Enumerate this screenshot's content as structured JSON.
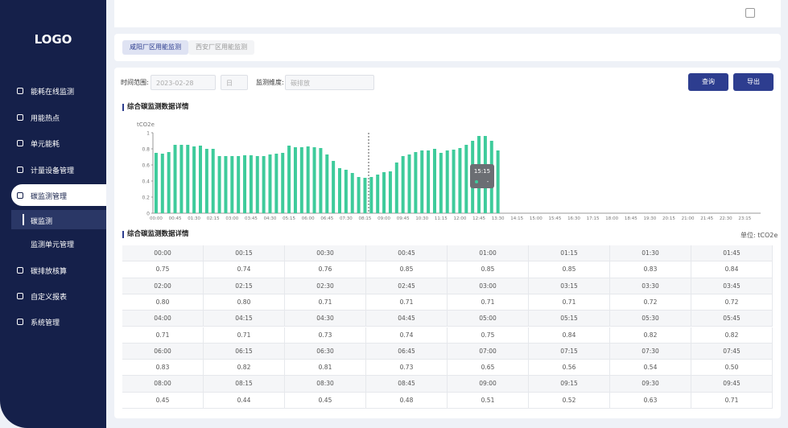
{
  "sidebar": {
    "logo": "LOGO",
    "menu": [
      "能耗在线监测",
      "用能热点",
      "单元能耗",
      "计量设备管理",
      "碳监测管理"
    ],
    "submenu": [
      "碳监测",
      "监测单元管理"
    ],
    "menu_after": [
      "碳排放核算",
      "自定义报表",
      "系统管理"
    ]
  },
  "tabs": [
    "咸阳厂区用能监测",
    "西安厂区用能监测"
  ],
  "filters": {
    "time_label": "时间范围:",
    "date": "2023-02-28",
    "period": "日",
    "dimension_label": "监测维度:",
    "dimension": "碳排放"
  },
  "buttons": [
    "查询",
    "导出"
  ],
  "chart_data": {
    "type": "bar",
    "title": "综合碳监测数据详情",
    "y_label": "tCO2e",
    "color": "#3ecb9b",
    "ylim": [
      0,
      1
    ],
    "yticks": [
      0,
      0.2,
      0.4,
      0.6,
      0.8,
      1
    ],
    "categories": [
      "00:00",
      null,
      null,
      "00:45",
      null,
      null,
      "01:30",
      null,
      null,
      "02:15",
      null,
      null,
      "03:00",
      null,
      null,
      "03:45",
      null,
      null,
      "04:30",
      null,
      null,
      "05:15",
      null,
      null,
      "06:00",
      null,
      null,
      "06:45",
      null,
      null,
      "07:30",
      null,
      null,
      "08:15",
      null,
      null,
      "09:00",
      null,
      null,
      "09:45",
      null,
      null,
      "10:30",
      null,
      null,
      "11:15",
      null,
      null,
      "12:00",
      null,
      null,
      "12:45",
      null,
      null,
      "13:30",
      null,
      null,
      "14:15",
      null,
      null,
      "15:00",
      null,
      null,
      "15:45",
      null,
      null,
      "16:30",
      null,
      null,
      "17:15",
      null,
      null,
      "18:00",
      null,
      null,
      "18:45",
      null,
      null,
      "19:30",
      null,
      null,
      "20:15",
      null,
      null,
      "21:00",
      null,
      null,
      "21:45",
      null,
      null,
      "22:30",
      null,
      null,
      "23:15",
      null,
      null
    ],
    "values": [
      0.75,
      0.74,
      0.76,
      0.85,
      0.85,
      0.85,
      0.83,
      0.84,
      0.8,
      0.8,
      0.71,
      0.71,
      0.71,
      0.71,
      0.72,
      0.72,
      0.71,
      0.71,
      0.73,
      0.74,
      0.75,
      0.84,
      0.82,
      0.82,
      0.83,
      0.82,
      0.81,
      0.73,
      0.65,
      0.56,
      0.54,
      0.5,
      0.45,
      0.44,
      0.45,
      0.48,
      0.51,
      0.52,
      0.63,
      0.71,
      0.73,
      0.76,
      0.78,
      0.78,
      0.8,
      0.75,
      0.78,
      0.79,
      0.81,
      0.85,
      0.9,
      0.96,
      0.96,
      0.9,
      0.78,
      null,
      null,
      null,
      null,
      null,
      null,
      null,
      null,
      null,
      null,
      null,
      null,
      null,
      null,
      null,
      null,
      null,
      null,
      null,
      null,
      null,
      null,
      null,
      null,
      null,
      null,
      null,
      null,
      null,
      null,
      null,
      null,
      null,
      null,
      null,
      null,
      null,
      null,
      null,
      null,
      null
    ],
    "tooltip": {
      "title": "15:15",
      "value": "-"
    }
  },
  "table": {
    "title": "综合碳监测数据详情",
    "unit": "单位: tCO2e",
    "rows": [
      [
        "00:00",
        "00:15",
        "00:30",
        "00:45",
        "01:00",
        "01:15",
        "01:30",
        "01:45"
      ],
      [
        "0.75",
        "0.74",
        "0.76",
        "0.85",
        "0.85",
        "0.85",
        "0.83",
        "0.84"
      ],
      [
        "02:00",
        "02:15",
        "02:30",
        "02:45",
        "03:00",
        "03:15",
        "03:30",
        "03:45"
      ],
      [
        "0.80",
        "0.80",
        "0.71",
        "0.71",
        "0.71",
        "0.71",
        "0.72",
        "0.72"
      ],
      [
        "04:00",
        "04:15",
        "04:30",
        "04:45",
        "05:00",
        "05:15",
        "05:30",
        "05:45"
      ],
      [
        "0.71",
        "0.71",
        "0.73",
        "0.74",
        "0.75",
        "0.84",
        "0.82",
        "0.82"
      ],
      [
        "06:00",
        "06:15",
        "06:30",
        "06:45",
        "07:00",
        "07:15",
        "07:30",
        "07:45"
      ],
      [
        "0.83",
        "0.82",
        "0.81",
        "0.73",
        "0.65",
        "0.56",
        "0.54",
        "0.50"
      ],
      [
        "08:00",
        "08:15",
        "08:30",
        "08:45",
        "09:00",
        "09:15",
        "09:30",
        "09:45"
      ],
      [
        "0.45",
        "0.44",
        "0.45",
        "0.48",
        "0.51",
        "0.52",
        "0.63",
        "0.71"
      ]
    ]
  }
}
